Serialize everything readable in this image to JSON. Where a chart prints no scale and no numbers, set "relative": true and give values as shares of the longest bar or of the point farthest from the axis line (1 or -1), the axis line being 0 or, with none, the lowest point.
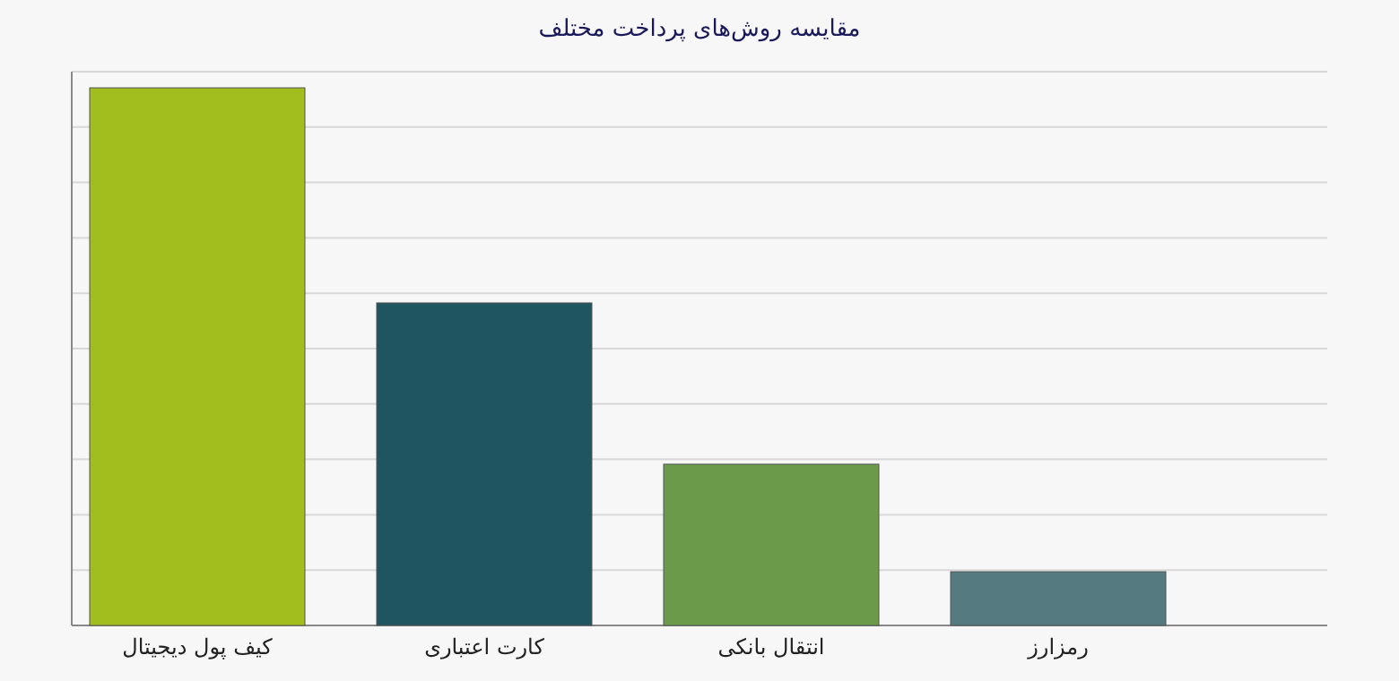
{
  "chart_data": {
    "type": "bar",
    "title": "مقایسه روش‌های پرداخت مختلف",
    "relative": true,
    "grid": "y",
    "categories": [
      "کیف پول دیجیتال",
      "کارت اعتباری",
      "انتقال بانکی",
      "رمزارز"
    ],
    "values": [
      1,
      0.6,
      0.3,
      0.1
    ],
    "colors": [
      "#a2bd1e",
      "#1f5560",
      "#6b9a4a",
      "#557a80"
    ]
  }
}
